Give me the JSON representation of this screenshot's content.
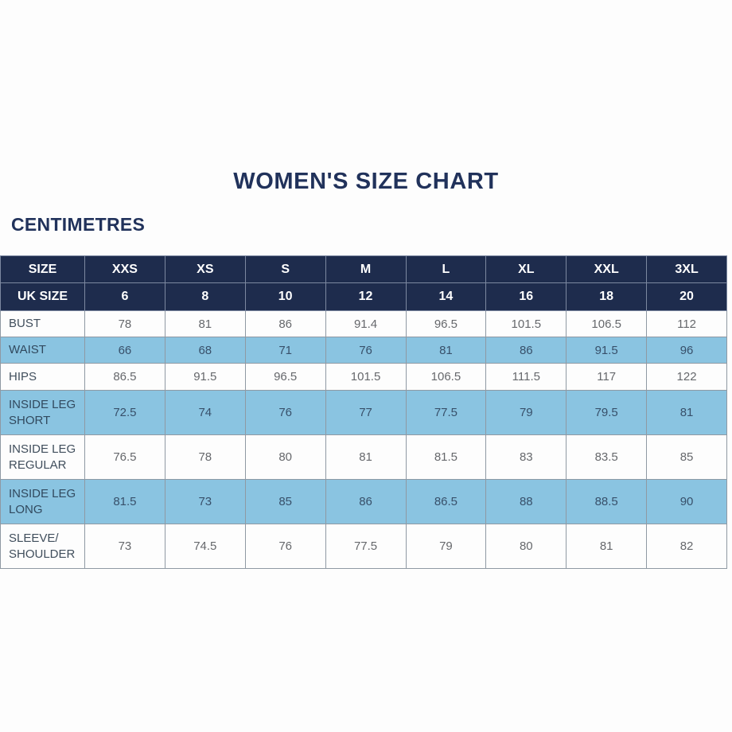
{
  "page": {
    "title": "WOMEN'S SIZE CHART",
    "unit_label": "CENTIMETRES"
  },
  "colors": {
    "header_bg": "#1e2c4d",
    "header_text": "#ffffff",
    "highlight_row_bg": "#8ac4e1",
    "title_text": "#21325b",
    "label_text": "#404e5c",
    "value_text": "#66686c",
    "highlight_value_text": "#38506a",
    "grid_border": "#8f99a3"
  },
  "size_chart": {
    "header_row": [
      "SIZE",
      "XXS",
      "XS",
      "S",
      "M",
      "L",
      "XL",
      "XXL",
      "3XL"
    ],
    "uk_size_row": [
      "UK SIZE",
      "6",
      "8",
      "10",
      "12",
      "14",
      "16",
      "18",
      "20"
    ],
    "rows": [
      {
        "label": "BUST",
        "highlighted": false,
        "values": [
          "78",
          "81",
          "86",
          "91.4",
          "96.5",
          "101.5",
          "106.5",
          "112"
        ]
      },
      {
        "label": "WAIST",
        "highlighted": true,
        "values": [
          "66",
          "68",
          "71",
          "76",
          "81",
          "86",
          "91.5",
          "96"
        ]
      },
      {
        "label": "HIPS",
        "highlighted": false,
        "values": [
          "86.5",
          "91.5",
          "96.5",
          "101.5",
          "106.5",
          "111.5",
          "117",
          "122"
        ]
      },
      {
        "label": "INSIDE LEG\nSHORT",
        "highlighted": true,
        "values": [
          "72.5",
          "74",
          "76",
          "77",
          "77.5",
          "79",
          "79.5",
          "81"
        ]
      },
      {
        "label": "INSIDE LEG\nREGULAR",
        "highlighted": false,
        "values": [
          "76.5",
          "78",
          "80",
          "81",
          "81.5",
          "83",
          "83.5",
          "85"
        ]
      },
      {
        "label": "INSIDE LEG\nLONG",
        "highlighted": true,
        "values": [
          "81.5",
          "73",
          "85",
          "86",
          "86.5",
          "88",
          "88.5",
          "90"
        ]
      },
      {
        "label": "SLEEVE/\nSHOULDER",
        "highlighted": false,
        "values": [
          "73",
          "74.5",
          "76",
          "77.5",
          "79",
          "80",
          "81",
          "82"
        ]
      }
    ]
  }
}
